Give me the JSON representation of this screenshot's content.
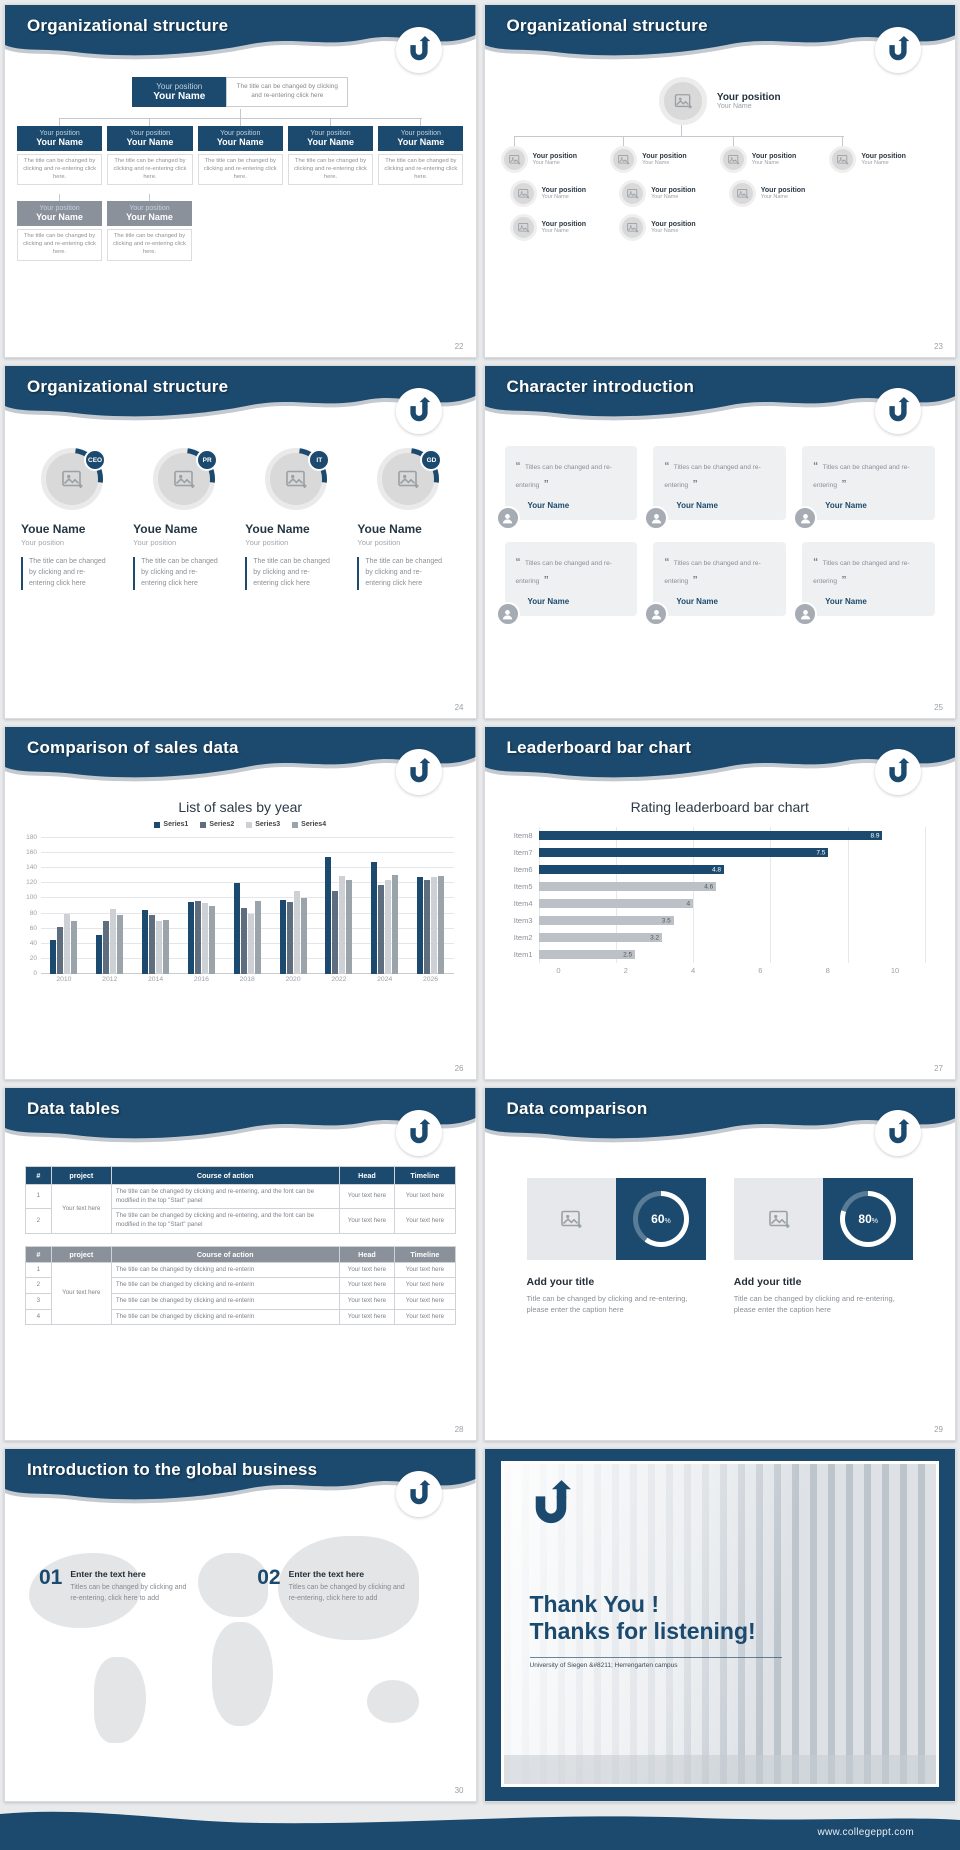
{
  "page": {
    "footer_url": "www.collegeppt.com"
  },
  "slides": {
    "s22": {
      "title": "Organizational structure",
      "page_num": "22",
      "position": "Your position",
      "name": "Your Name",
      "top_desc": "The title can be changed by clicking and re-entering click here",
      "box_desc": "The title can be changed by clicking and re-entering click here."
    },
    "s23": {
      "title": "Organizational structure",
      "page_num": "23",
      "position": "Your position",
      "name": "Your Name"
    },
    "s24": {
      "title": "Organizational structure",
      "page_num": "24",
      "badges": [
        "CEO",
        "PR",
        "IT",
        "GD"
      ],
      "name": "Youe Name",
      "position": "Your position",
      "desc": "The title can be changed by clicking and re-entering click here"
    },
    "s25": {
      "title": "Character introduction",
      "page_num": "25",
      "quote_open": "“",
      "quote_close": "”",
      "quote": "Titles can be changed and re-entering",
      "name": "Your Name"
    },
    "s26": {
      "title": "Comparison of sales data",
      "page_num": "26"
    },
    "s27": {
      "title": "Leaderboard bar chart",
      "page_num": "27"
    },
    "s28": {
      "title": "Data tables",
      "page_num": "28",
      "table1": {
        "headers": [
          "#",
          "project",
          "Course of action",
          "Head",
          "Timeline"
        ],
        "project_cell": "Your text here",
        "rows": [
          {
            "num": "1",
            "course": "The title can be changed by clicking and re-entering, and the font can be modified in the top \"Start\" panel",
            "head": "Your text here",
            "timeline": "Your text here"
          },
          {
            "num": "2",
            "course": "The title can be changed by clicking and re-entering, and the font can be modified in the top \"Start\" panel",
            "head": "Your text here",
            "timeline": "Your text here"
          }
        ]
      },
      "table2": {
        "headers": [
          "#",
          "project",
          "Course of action",
          "Head",
          "Timeline"
        ],
        "project_cell": "Your text here",
        "rows": [
          {
            "num": "1",
            "course": "The title can be changed by clicking and re-enterin",
            "head": "Your text here",
            "timeline": "Your text here"
          },
          {
            "num": "2",
            "course": "The title can be changed by clicking and re-enterin",
            "head": "Your text here",
            "timeline": "Your text here"
          },
          {
            "num": "3",
            "course": "The title can be changed by clicking and re-enterin",
            "head": "Your text here",
            "timeline": "Your text here"
          },
          {
            "num": "4",
            "course": "The title can be changed by clicking and re-enterin",
            "head": "Your text here",
            "timeline": "Your text here"
          }
        ]
      }
    },
    "s29": {
      "title": "Data comparison",
      "page_num": "29",
      "percent_sign": "%",
      "panels": [
        {
          "percent": 60,
          "percent_label": "60",
          "heading": "Add your title",
          "caption": "Title can be changed by clicking and re-entering, please enter the caption here"
        },
        {
          "percent": 80,
          "percent_label": "80",
          "heading": "Add your title",
          "caption": "Title can be changed by clicking and re-entering, please enter the caption here"
        }
      ]
    },
    "s30": {
      "title": "Introduction to the global business",
      "page_num": "30",
      "items": [
        {
          "num": "01",
          "heading": "Enter the text here",
          "text": "Titles can be changed by clicking and re-entering, click here to add"
        },
        {
          "num": "02",
          "heading": "Enter the text here",
          "text": "Titles can be changed by clicking and re-entering, click here to add"
        }
      ]
    },
    "s31": {
      "line1": "Thank You !",
      "line2": "Thanks for listening!",
      "caption": "University of Siegen &#8211; Herrengarten campus"
    }
  },
  "chart_data": [
    {
      "type": "bar",
      "title": "List of sales by year",
      "categories": [
        "2010",
        "2012",
        "2014",
        "2016",
        "2018",
        "2020",
        "2022",
        "2024",
        "2026"
      ],
      "series": [
        {
          "name": "Series1",
          "color": "#1b4a6e",
          "values": [
            45,
            52,
            85,
            95,
            120,
            98,
            155,
            148,
            128
          ]
        },
        {
          "name": "Series2",
          "color": "#5f6e7e",
          "values": [
            62,
            70,
            78,
            96,
            88,
            95,
            110,
            118,
            125
          ]
        },
        {
          "name": "Series3",
          "color": "#cdd1d6",
          "values": [
            80,
            86,
            70,
            94,
            80,
            110,
            130,
            124,
            128
          ]
        },
        {
          "name": "Series4",
          "color": "#9ba3ab",
          "values": [
            70,
            78,
            72,
            90,
            96,
            100,
            125,
            131,
            130
          ]
        }
      ],
      "xlabel": "",
      "ylabel": "",
      "ylim": [
        0,
        180
      ],
      "yticks": [
        0,
        20,
        40,
        60,
        80,
        100,
        120,
        140,
        160,
        180
      ],
      "grid": true,
      "legend_position": "top"
    },
    {
      "type": "bar-horizontal",
      "title": "Rating leaderboard bar chart",
      "categories": [
        "Item8",
        "Item7",
        "Item6",
        "Item5",
        "Item4",
        "Item3",
        "Item2",
        "Item1"
      ],
      "values": [
        8.9,
        7.5,
        4.8,
        4.6,
        4,
        3.5,
        3.2,
        2.5
      ],
      "colors": [
        "#1b4a6e",
        "#1b4a6e",
        "#1b4a6e",
        "#bcc1c7",
        "#bcc1c7",
        "#bcc1c7",
        "#bcc1c7",
        "#bcc1c7"
      ],
      "xlim": [
        0,
        10
      ],
      "xticks": [
        0,
        2,
        4,
        6,
        8,
        10
      ],
      "grid": true
    }
  ]
}
